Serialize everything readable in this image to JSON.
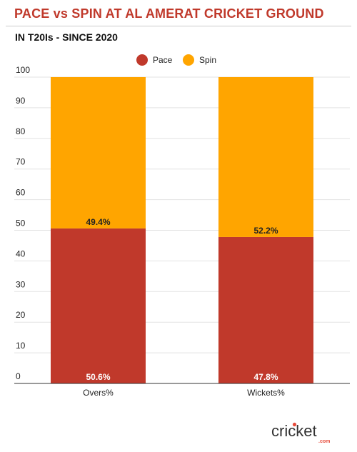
{
  "title": "PACE vs SPIN AT AL AMERAT CRICKET GROUND",
  "subtitle": "IN T20Is - SINCE 2020",
  "logo": {
    "text": "cricket",
    "suffix": ".com"
  },
  "colors": {
    "pace": "#c0392b",
    "spin": "#ffa500",
    "title": "#c0392b"
  },
  "chart_data": {
    "type": "bar",
    "stacked": true,
    "categories": [
      "Overs%",
      "Wickets%"
    ],
    "series": [
      {
        "name": "Pace",
        "values": [
          50.6,
          47.8
        ],
        "labels": [
          "50.6%",
          "47.8%"
        ],
        "color": "#c0392b"
      },
      {
        "name": "Spin",
        "values": [
          49.4,
          52.2
        ],
        "labels": [
          "49.4%",
          "52.2%"
        ],
        "color": "#ffa500"
      }
    ],
    "ylim": [
      0,
      100
    ],
    "yticks": [
      0,
      10,
      20,
      30,
      40,
      50,
      60,
      70,
      80,
      90,
      100
    ],
    "grid": true,
    "legend": "top-center",
    "xlabel": "",
    "ylabel": ""
  }
}
